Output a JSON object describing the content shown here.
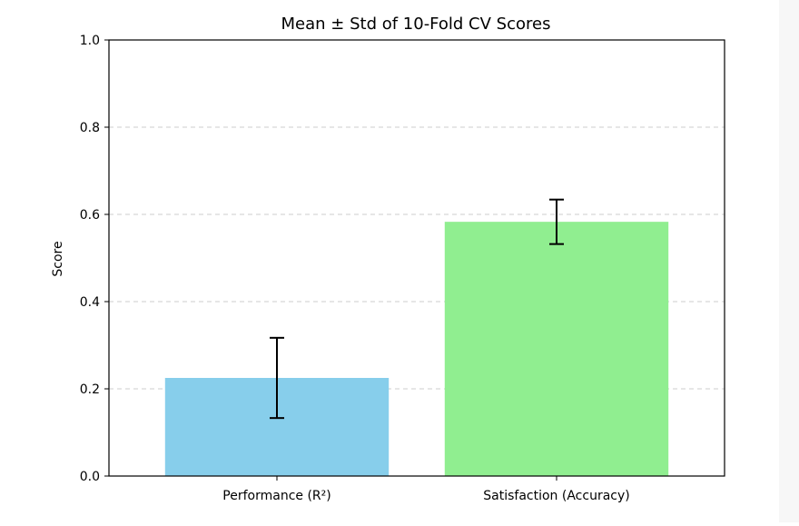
{
  "chart_data": {
    "type": "bar",
    "title": "Mean ± Std of 10-Fold CV Scores",
    "xlabel": "",
    "ylabel": "Score",
    "categories": [
      "Performance (R²)",
      "Satisfaction (Accuracy)"
    ],
    "values": [
      0.225,
      0.583
    ],
    "error": [
      0.092,
      0.051
    ],
    "colors": [
      "#87ceeb",
      "#90ee90"
    ],
    "ylim": [
      0.0,
      1.0
    ],
    "yticks": [
      "0.0",
      "0.2",
      "0.4",
      "0.6",
      "0.8",
      "1.0"
    ],
    "grid": "y-dashed",
    "legend": "none"
  }
}
